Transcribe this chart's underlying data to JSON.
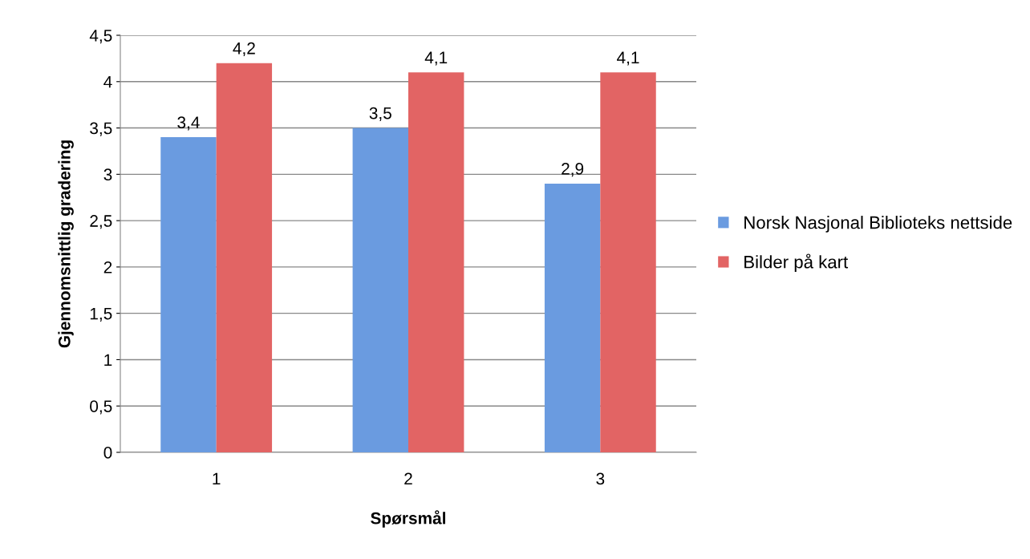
{
  "chart_data": {
    "type": "bar",
    "xlabel": "Spørsmål",
    "ylabel": "Gjennomsnittlig gradering",
    "categories": [
      "1",
      "2",
      "3"
    ],
    "series": [
      {
        "name": "Norsk Nasjonal Biblioteks nettside",
        "color": "#6a9be0",
        "values": [
          3.4,
          3.5,
          2.9
        ],
        "value_labels": [
          "3,4",
          "3,5",
          "2,9"
        ]
      },
      {
        "name": "Bilder på kart",
        "color": "#e26464",
        "values": [
          4.2,
          4.1,
          4.1
        ],
        "value_labels": [
          "4,2",
          "4,1",
          "4,1"
        ]
      }
    ],
    "ylim": [
      0,
      4.5
    ],
    "yticks": [
      0,
      {
        "value": 0.5,
        "label": "0,5"
      },
      1,
      {
        "value": 1.5,
        "label": "1,5"
      },
      2,
      {
        "value": 2.5,
        "label": "2,5"
      },
      3,
      {
        "value": 3.5,
        "label": "3,5"
      },
      4,
      {
        "value": 4.5,
        "label": "4,5"
      }
    ],
    "grid": "y",
    "legend": "right"
  }
}
